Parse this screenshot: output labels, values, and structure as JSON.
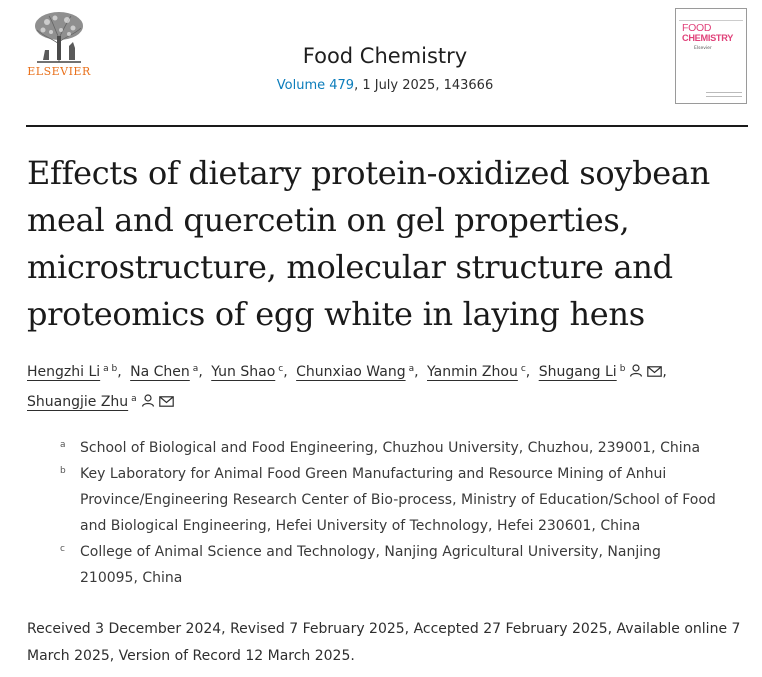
{
  "header": {
    "publisher": "ELSEVIER",
    "journal_name": "Food Chemistry",
    "volume_link": "Volume 479",
    "issue_info": ", 1 July 2025, 143666",
    "cover": {
      "line1": "FOOD",
      "line2": "CHEMISTRY",
      "subtitle": "Elsevier"
    }
  },
  "article": {
    "title": "Effects of dietary protein-oxidized soybean meal and quercetin on gel properties, microstructure, molecular structure and proteomics of egg white in laying hens"
  },
  "authors": [
    {
      "name": "Hengzhi Li",
      "sup": "a b",
      "icons": []
    },
    {
      "name": "Na Chen",
      "sup": "a",
      "icons": []
    },
    {
      "name": "Yun Shao",
      "sup": "c",
      "icons": []
    },
    {
      "name": "Chunxiao Wang",
      "sup": "a",
      "icons": []
    },
    {
      "name": "Yanmin Zhou",
      "sup": "c",
      "icons": []
    },
    {
      "name": "Shugang Li",
      "sup": "b",
      "icons": [
        "person-icon",
        "mail-icon"
      ]
    },
    {
      "name": "Shuangjie Zhu",
      "sup": "a",
      "icons": [
        "person-icon",
        "mail-icon"
      ]
    }
  ],
  "affiliations": [
    {
      "label": "a",
      "text": "School of Biological and Food Engineering, Chuzhou University, Chuzhou, 239001, China"
    },
    {
      "label": "b",
      "text": "Key Laboratory for Animal Food Green Manufacturing and Resource Mining of Anhui Province/Engineering Research Center of Bio-process, Ministry of Education/School of Food and Biological Engineering, Hefei University of Technology, Hefei 230601, China"
    },
    {
      "label": "c",
      "text": "College of Animal Science and Technology, Nanjing Agricultural University, Nanjing 210095, China"
    }
  ],
  "dates": "Received 3 December 2024, Revised 7 February 2025, Accepted 27 February 2025, Available online 7 March 2025, Version of Record 12 March 2025.",
  "colors": {
    "publisher_orange": "#e9711c",
    "link_blue": "#0c7dbb",
    "cover_pink": "#e0427a"
  }
}
